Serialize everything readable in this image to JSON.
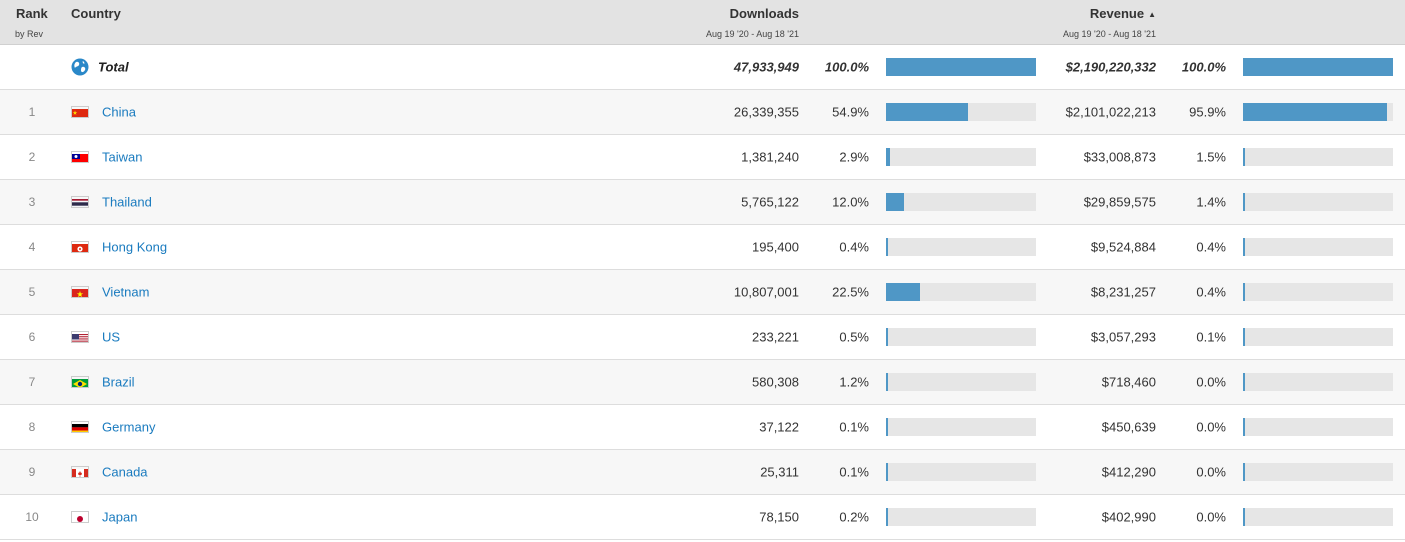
{
  "header": {
    "rank_label": "Rank",
    "rank_sub": "by Rev",
    "country_label": "Country",
    "downloads_label": "Downloads",
    "downloads_range": "Aug 19 '20 - Aug 18 '21",
    "revenue_label": "Revenue",
    "revenue_sort": "▲",
    "revenue_range": "Aug 19 '20 - Aug 18 '21"
  },
  "total": {
    "label": "Total",
    "downloads": "47,933,949",
    "downloads_pct": "100.0%",
    "revenue": "$2,190,220,332",
    "revenue_pct": "100.0%",
    "icon": "globe-icon"
  },
  "rows": [
    {
      "rank": "1",
      "country": "China",
      "flag": "china-flag",
      "downloads": "26,339,355",
      "downloads_pct": "54.9%",
      "dl_frac": 0.549,
      "revenue": "$2,101,022,213",
      "revenue_pct": "95.9%",
      "rev_frac": 0.959
    },
    {
      "rank": "2",
      "country": "Taiwan",
      "flag": "taiwan-flag",
      "downloads": "1,381,240",
      "downloads_pct": "2.9%",
      "dl_frac": 0.029,
      "revenue": "$33,008,873",
      "revenue_pct": "1.5%",
      "rev_frac": 0.015
    },
    {
      "rank": "3",
      "country": "Thailand",
      "flag": "thailand-flag",
      "downloads": "5,765,122",
      "downloads_pct": "12.0%",
      "dl_frac": 0.12,
      "revenue": "$29,859,575",
      "revenue_pct": "1.4%",
      "rev_frac": 0.014
    },
    {
      "rank": "4",
      "country": "Hong Kong",
      "flag": "hong-kong-flag",
      "downloads": "195,400",
      "downloads_pct": "0.4%",
      "dl_frac": 0.004,
      "revenue": "$9,524,884",
      "revenue_pct": "0.4%",
      "rev_frac": 0.004
    },
    {
      "rank": "5",
      "country": "Vietnam",
      "flag": "vietnam-flag",
      "downloads": "10,807,001",
      "downloads_pct": "22.5%",
      "dl_frac": 0.225,
      "revenue": "$8,231,257",
      "revenue_pct": "0.4%",
      "rev_frac": 0.004
    },
    {
      "rank": "6",
      "country": "US",
      "flag": "us-flag",
      "downloads": "233,221",
      "downloads_pct": "0.5%",
      "dl_frac": 0.005,
      "revenue": "$3,057,293",
      "revenue_pct": "0.1%",
      "rev_frac": 0.001
    },
    {
      "rank": "7",
      "country": "Brazil",
      "flag": "brazil-flag",
      "downloads": "580,308",
      "downloads_pct": "1.2%",
      "dl_frac": 0.012,
      "revenue": "$718,460",
      "revenue_pct": "0.0%",
      "rev_frac": 0.0
    },
    {
      "rank": "8",
      "country": "Germany",
      "flag": "germany-flag",
      "downloads": "37,122",
      "downloads_pct": "0.1%",
      "dl_frac": 0.001,
      "revenue": "$450,639",
      "revenue_pct": "0.0%",
      "rev_frac": 0.0
    },
    {
      "rank": "9",
      "country": "Canada",
      "flag": "canada-flag",
      "downloads": "25,311",
      "downloads_pct": "0.1%",
      "dl_frac": 0.001,
      "revenue": "$412,290",
      "revenue_pct": "0.0%",
      "rev_frac": 0.0
    },
    {
      "rank": "10",
      "country": "Japan",
      "flag": "japan-flag",
      "downloads": "78,150",
      "downloads_pct": "0.2%",
      "dl_frac": 0.002,
      "revenue": "$402,990",
      "revenue_pct": "0.0%",
      "rev_frac": 0.0
    }
  ],
  "colors": {
    "bar": "#4f97c6",
    "bar_track": "#e6e6e6",
    "link": "#1a7bbf",
    "header_bg": "#e3e3e3"
  }
}
